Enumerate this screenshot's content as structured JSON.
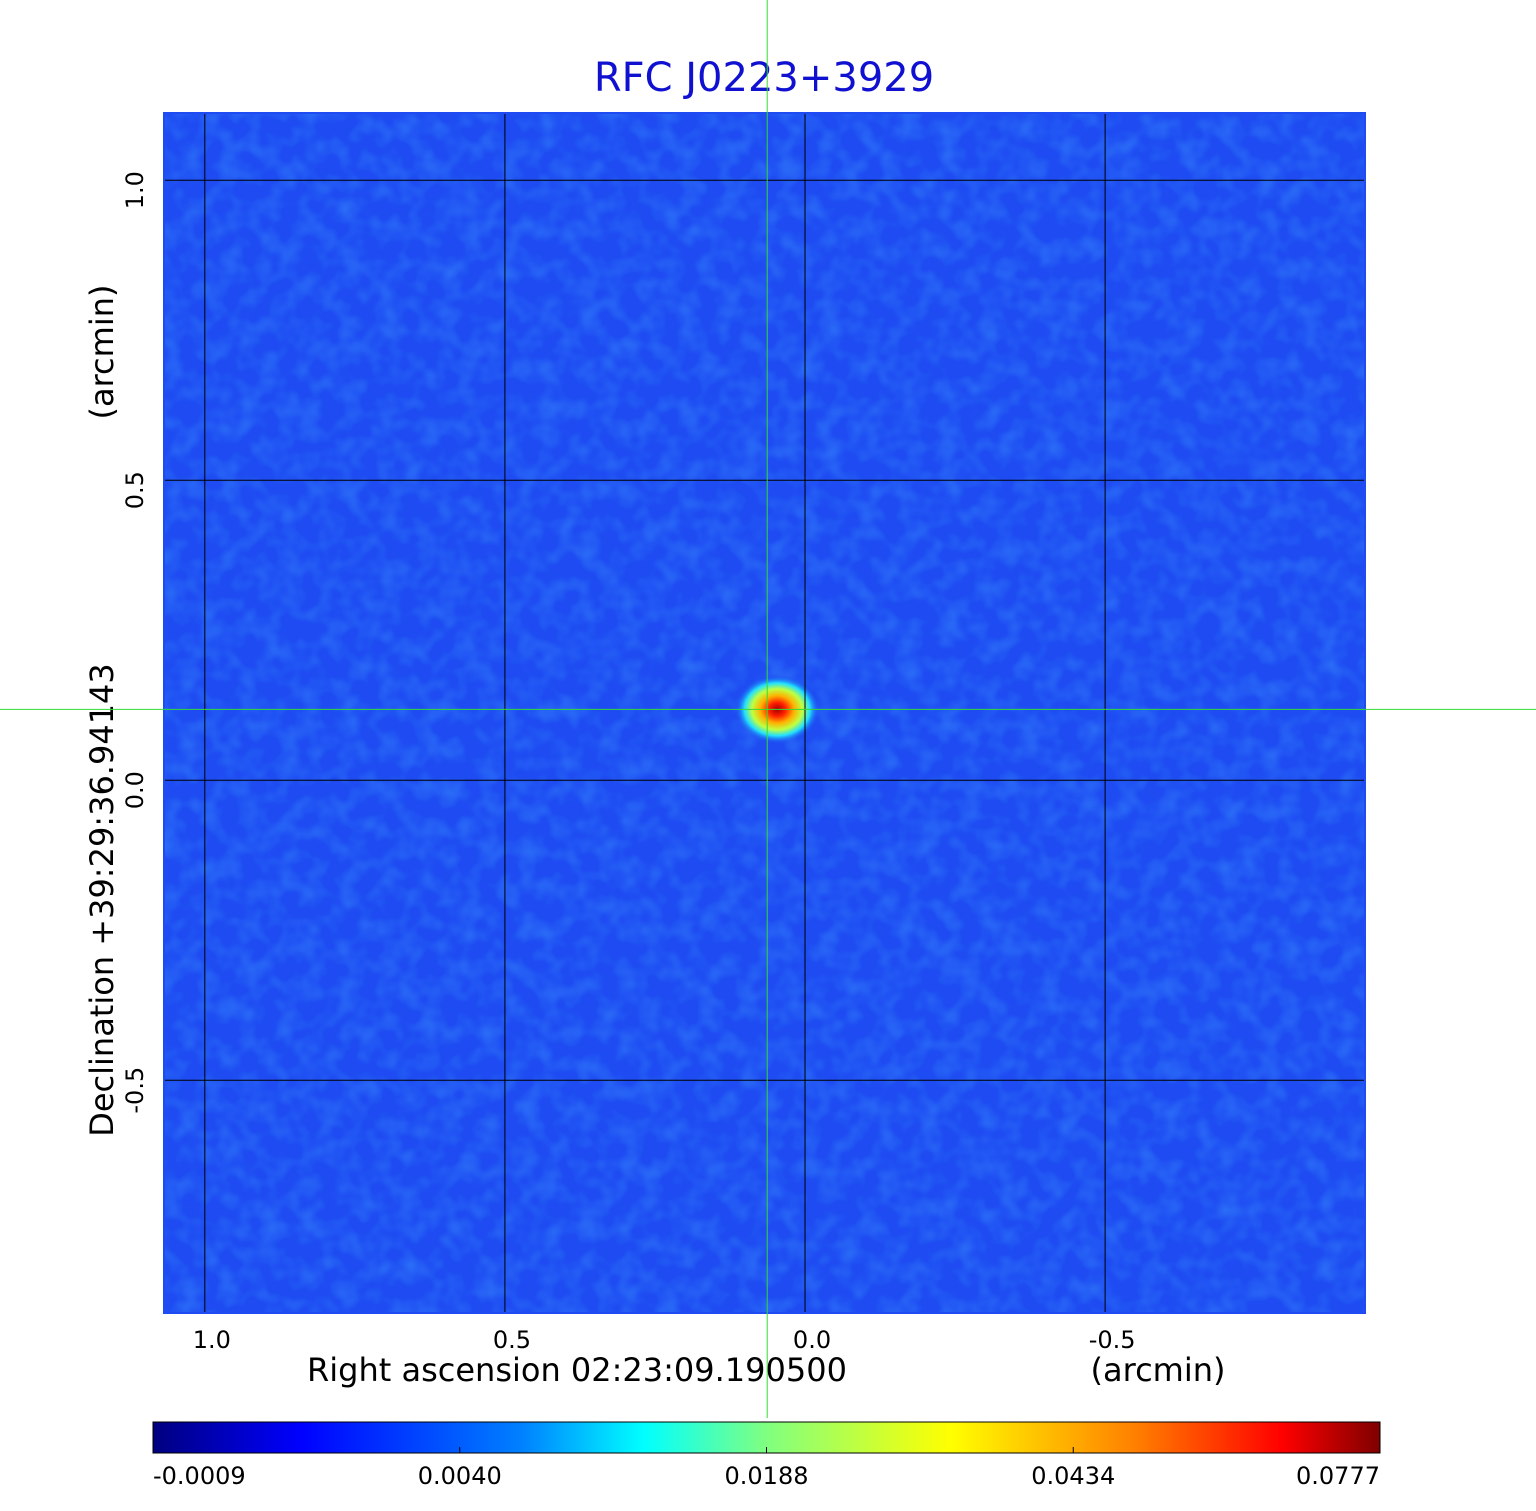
{
  "chart_data": {
    "type": "image",
    "title": "RFC J0223+3929",
    "xlabel": "Right ascension  02:23:09.190500",
    "xunit": "(arcmin)",
    "ylabel": "Declination  +39:29:36.94143",
    "yunit": "(arcmin)",
    "xlim": [
      1.068,
      -0.933
    ],
    "ylim": [
      -0.888,
      1.112
    ],
    "xticks": [
      {
        "value": 1.0,
        "label": "1.0"
      },
      {
        "value": 0.5,
        "label": "0.5"
      },
      {
        "value": 0.0,
        "label": "0.0"
      },
      {
        "value": -0.5,
        "label": "-0.5"
      }
    ],
    "yticks": [
      {
        "value": 1.0,
        "label": "1.0"
      },
      {
        "value": 0.5,
        "label": "0.5"
      },
      {
        "value": 0.0,
        "label": "0.0"
      },
      {
        "value": -0.5,
        "label": "-0.5"
      }
    ],
    "grid": true,
    "source": {
      "x": 0.063,
      "y": 0.118
    },
    "colormap": "jet",
    "colorbar_ticks": [
      -0.0009,
      {
        "value": 0.004,
        "label": "0.0040"
      },
      0.0188,
      0.0434,
      0.0777
    ]
  }
}
